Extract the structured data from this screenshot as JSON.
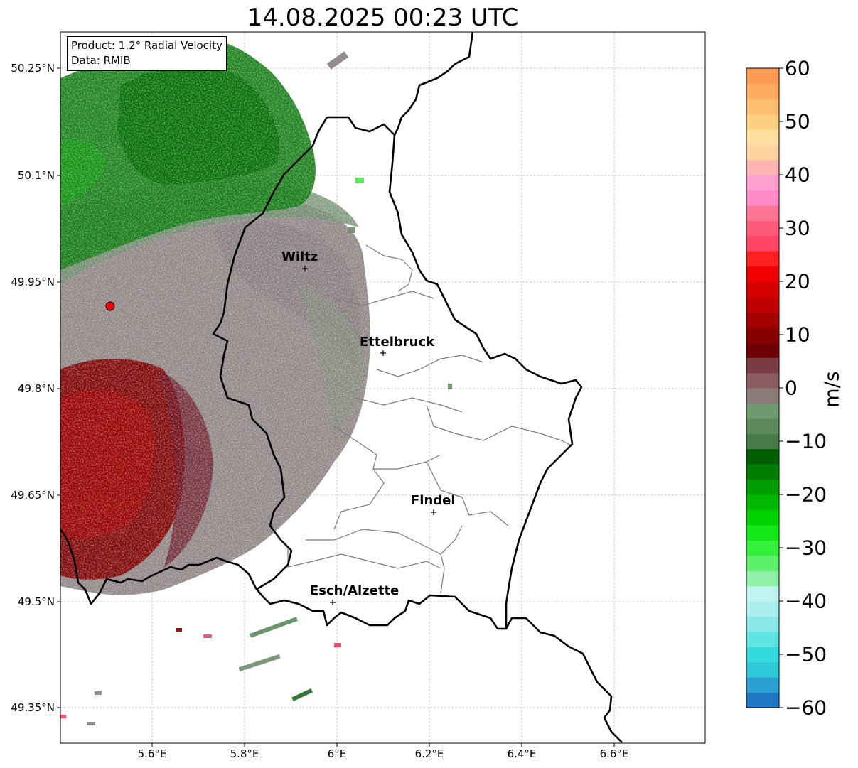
{
  "title": "14.08.2025 00:23 UTC",
  "info": {
    "product": "Product: 1.2° Radial Velocity",
    "source": "Data: RMIB"
  },
  "axes": {
    "lat_ticks": [
      "50.25°N",
      "50.1°N",
      "49.95°N",
      "49.8°N",
      "49.65°N",
      "49.5°N",
      "49.35°N"
    ],
    "lon_ticks": [
      "5.6°E",
      "5.8°E",
      "6°E",
      "6.2°E",
      "6.4°E",
      "6.6°E"
    ]
  },
  "cities": [
    {
      "name": "Wiltz"
    },
    {
      "name": "Ettelbruck"
    },
    {
      "name": "Findel"
    },
    {
      "name": "Esch/Alzette"
    }
  ],
  "colorbar": {
    "unit": "m/s",
    "ticks": [
      "60",
      "50",
      "40",
      "30",
      "20",
      "10",
      "0",
      "−10",
      "−20",
      "−30",
      "−40",
      "−50",
      "−60"
    ],
    "colors": [
      "#1f78c1",
      "#2a9fd0",
      "#2ec8d6",
      "#34dbdc",
      "#5fe3e3",
      "#8ae8e8",
      "#aaeeee",
      "#bff2f0",
      "#90f0a8",
      "#5ff06a",
      "#33f03a",
      "#12e818",
      "#00d200",
      "#00b800",
      "#009e00",
      "#007e00",
      "#005e00",
      "#4a7a4a",
      "#5c8a5c",
      "#6f9a6f",
      "#8a7a7a",
      "#8a5c62",
      "#7a3c44",
      "#700008",
      "#8a0000",
      "#a40000",
      "#c00000",
      "#d80000",
      "#f00000",
      "#ff2020",
      "#ff4466",
      "#ff5a7a",
      "#ff7595",
      "#ff8cc8",
      "#ffa0d0",
      "#ffb4b4",
      "#ffd4a0",
      "#ffe0a0",
      "#ffd080",
      "#ffbe70",
      "#ffab60",
      "#ff9a55"
    ]
  },
  "radar": {
    "marker_color": "#ff0000"
  }
}
